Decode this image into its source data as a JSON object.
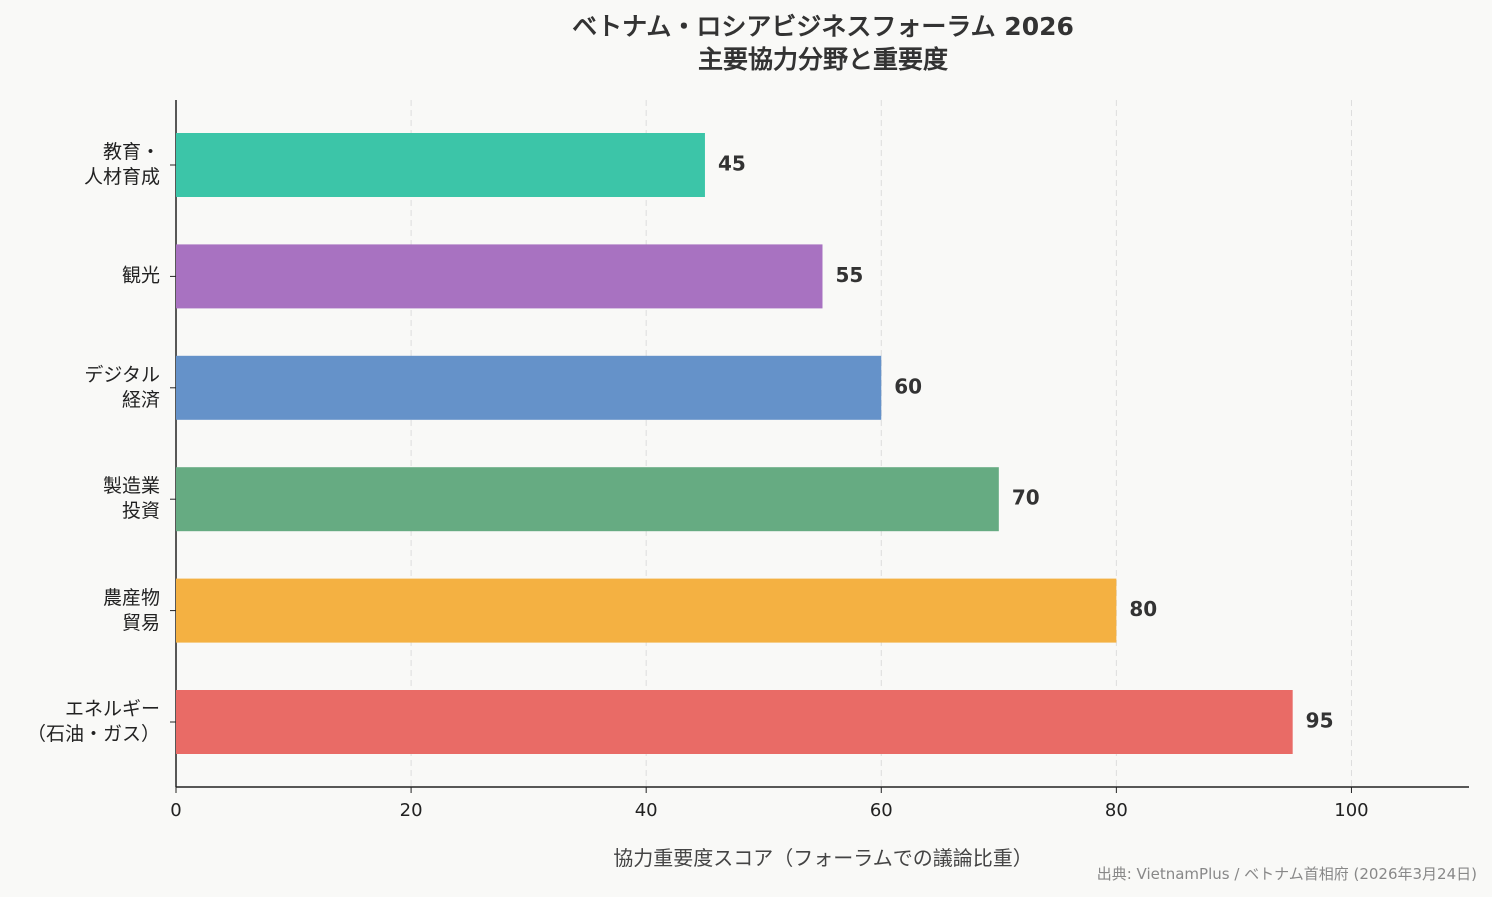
{
  "chart_data": {
    "type": "barh",
    "title": "ベトナム・ロシアビジネスフォーラム 2026\n主要協力分野と重要度",
    "categories": [
      "教育・\n人材育成",
      "観光",
      "デジタル\n経済",
      "製造業\n投資",
      "農産物\n貿易",
      "エネルギー\n（石油・ガス）"
    ],
    "values": [
      45,
      55,
      60,
      70,
      80,
      95
    ],
    "colors": [
      "#3cc5a8",
      "#a872c1",
      "#6592c9",
      "#66ab82",
      "#f4b142",
      "#e96b66"
    ],
    "xlim": [
      0,
      110
    ],
    "xticks": [
      0,
      20,
      40,
      60,
      80,
      100
    ],
    "grid": true,
    "xlabel": "協力重要度スコア（フォーラムでの議論比重）",
    "source": "出典: VietnamPlus / ベトナム首相府 (2026年3月24日)"
  }
}
